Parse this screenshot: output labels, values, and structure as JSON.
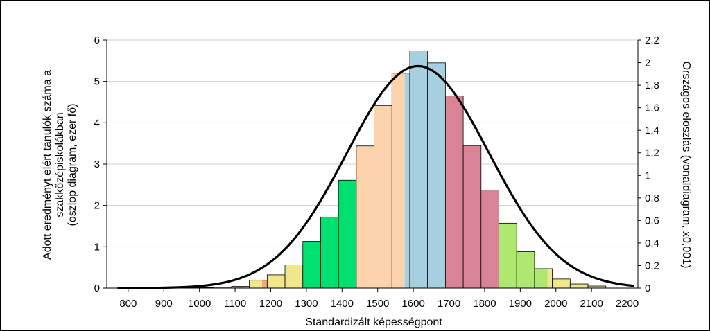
{
  "chart_data": {
    "type": "bar",
    "xlabel": "Standardizált képességpont",
    "ylabel_lines": [
      "Adott eredményt elért tanulók száma a",
      "szakközépiskolákban",
      "(oszlop diagram, ezer fő)"
    ],
    "y2label": "Országos eloszlás (vonaldiagram, x0,001)",
    "xlim": [
      740,
      2230
    ],
    "ylim": [
      0,
      6
    ],
    "y2lim": [
      0,
      2.2
    ],
    "x_ticks": [
      800,
      900,
      1000,
      1100,
      1200,
      1300,
      1400,
      1500,
      1600,
      1700,
      1800,
      1900,
      2000,
      2100,
      2200
    ],
    "x_tick_labels": [
      "800",
      "900",
      "1000",
      "1100",
      "1200",
      "1300",
      "1400",
      "1500",
      "1600",
      "1700",
      "1800",
      "1900",
      "2000",
      "2100",
      "2200"
    ],
    "y_ticks": [
      0,
      1,
      2,
      3,
      4,
      5,
      6
    ],
    "y_tick_labels": [
      "0",
      "1",
      "2",
      "3",
      "4",
      "5",
      "6"
    ],
    "y2_ticks": [
      0,
      0.2,
      0.4,
      0.6,
      0.8,
      1,
      1.2,
      1.4,
      1.6,
      1.8,
      2,
      2.2
    ],
    "y2_tick_labels": [
      "0",
      "0,2",
      "0,4",
      "0,6",
      "0,8",
      "1",
      "1,2",
      "1,4",
      "1,6",
      "1,8",
      "2",
      "2,2"
    ],
    "grid": "horizontal",
    "bars": [
      {
        "x0": 840,
        "x1": 890,
        "value": 0.01,
        "color": "#f0e68c"
      },
      {
        "x0": 890,
        "x1": 940,
        "value": 0.01,
        "color": "#f0e68c"
      },
      {
        "x0": 940,
        "x1": 990,
        "value": 0.01,
        "color": "#f0e68c"
      },
      {
        "x0": 990,
        "x1": 1040,
        "value": 0.01,
        "color": "#f0e68c"
      },
      {
        "x0": 1040,
        "x1": 1090,
        "value": 0.02,
        "color": "#f0e68c"
      },
      {
        "x0": 1090,
        "x1": 1140,
        "value": 0.04,
        "color": "#f4a582",
        "accent": "#f0e68c"
      },
      {
        "x0": 1140,
        "x1": 1190,
        "value": 0.19,
        "color": "#f0e68c",
        "accent": "#f4a582"
      },
      {
        "x0": 1190,
        "x1": 1240,
        "value": 0.32,
        "color": "#f0e68c"
      },
      {
        "x0": 1240,
        "x1": 1290,
        "value": 0.56,
        "color": "#f0e68c"
      },
      {
        "x0": 1290,
        "x1": 1340,
        "value": 1.13,
        "color": "#00e070"
      },
      {
        "x0": 1340,
        "x1": 1390,
        "value": 1.72,
        "color": "#00e070"
      },
      {
        "x0": 1390,
        "x1": 1440,
        "value": 2.61,
        "color": "#00e070"
      },
      {
        "x0": 1440,
        "x1": 1490,
        "value": 3.44,
        "color": "#fcd3ad"
      },
      {
        "x0": 1490,
        "x1": 1540,
        "value": 4.42,
        "color": "#fcd3ad"
      },
      {
        "x0": 1540,
        "x1": 1590,
        "value": 5.2,
        "color": "#fcd3ad",
        "accent": "#a6cfe0"
      },
      {
        "x0": 1590,
        "x1": 1640,
        "value": 5.74,
        "color": "#a6cfe0"
      },
      {
        "x0": 1640,
        "x1": 1690,
        "value": 5.45,
        "color": "#a6cfe0"
      },
      {
        "x0": 1690,
        "x1": 1740,
        "value": 4.65,
        "color": "#d88496"
      },
      {
        "x0": 1740,
        "x1": 1790,
        "value": 3.45,
        "color": "#d88496"
      },
      {
        "x0": 1790,
        "x1": 1840,
        "value": 2.37,
        "color": "#d88496"
      },
      {
        "x0": 1840,
        "x1": 1890,
        "value": 1.57,
        "color": "#aee870"
      },
      {
        "x0": 1890,
        "x1": 1940,
        "value": 0.88,
        "color": "#aee870"
      },
      {
        "x0": 1940,
        "x1": 1990,
        "value": 0.47,
        "color": "#aee870",
        "accent": "#f0e68c"
      },
      {
        "x0": 1990,
        "x1": 2040,
        "value": 0.22,
        "color": "#f0e68c"
      },
      {
        "x0": 2040,
        "x1": 2090,
        "value": 0.1,
        "color": "#f0e68c"
      },
      {
        "x0": 2090,
        "x1": 2140,
        "value": 0.05,
        "color": "#f0e68c"
      }
    ],
    "line": {
      "axis": "y2",
      "mean": 1613,
      "sd": 200,
      "peak": 1.97,
      "x_range": [
        770,
        2220
      ],
      "color": "#000000"
    },
    "frame": {
      "border": "#000000",
      "grid": "#cfcfcf"
    }
  }
}
